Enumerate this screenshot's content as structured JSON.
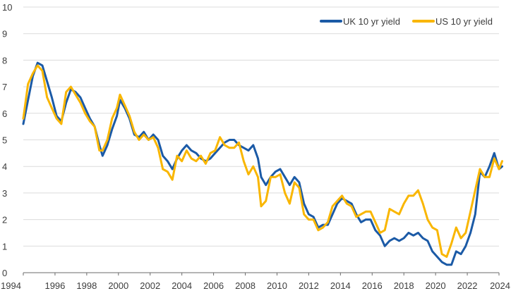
{
  "chart_data": {
    "type": "line",
    "title": "",
    "xlabel": "",
    "ylabel": "",
    "xlim": [
      1994,
      2024
    ],
    "ylim": [
      0,
      10
    ],
    "x_ticks": [
      "1994",
      "1996",
      "1998",
      "2000",
      "2002",
      "2004",
      "2006",
      "2008",
      "2010",
      "2012",
      "2014",
      "2016",
      "2018",
      "2020",
      "2022",
      "2024"
    ],
    "y_ticks": [
      "0",
      "1",
      "2",
      "3",
      "4",
      "5",
      "6",
      "7",
      "8",
      "9",
      "10"
    ],
    "grid": "horizontal",
    "legend_position": "top-right",
    "series": [
      {
        "name": "UK 10 yr yield",
        "color": "#1b5aa6",
        "x": [
          1994.0,
          1994.3,
          1994.6,
          1994.9,
          1995.2,
          1995.5,
          1995.8,
          1996.1,
          1996.4,
          1996.7,
          1997.0,
          1997.3,
          1997.6,
          1997.9,
          1998.2,
          1998.5,
          1998.8,
          1999.0,
          1999.3,
          1999.6,
          1999.9,
          2000.1,
          2000.4,
          2000.7,
          2001.0,
          2001.3,
          2001.6,
          2001.9,
          2002.2,
          2002.5,
          2002.8,
          2003.1,
          2003.4,
          2003.7,
          2004.0,
          2004.3,
          2004.6,
          2004.9,
          2005.2,
          2005.5,
          2005.8,
          2006.1,
          2006.4,
          2006.7,
          2007.0,
          2007.3,
          2007.6,
          2007.9,
          2008.2,
          2008.5,
          2008.8,
          2009.0,
          2009.3,
          2009.6,
          2009.9,
          2010.2,
          2010.5,
          2010.8,
          2011.1,
          2011.4,
          2011.7,
          2012.0,
          2012.3,
          2012.6,
          2012.9,
          2013.2,
          2013.5,
          2013.8,
          2014.1,
          2014.4,
          2014.7,
          2015.0,
          2015.3,
          2015.6,
          2015.9,
          2016.2,
          2016.5,
          2016.8,
          2017.1,
          2017.4,
          2017.7,
          2018.0,
          2018.3,
          2018.6,
          2018.9,
          2019.2,
          2019.5,
          2019.8,
          2020.1,
          2020.4,
          2020.7,
          2021.0,
          2021.3,
          2021.6,
          2021.9,
          2022.2,
          2022.5,
          2022.8,
          2023.1,
          2023.4,
          2023.7,
          2024.0,
          2024.2
        ],
        "values": [
          5.6,
          6.5,
          7.4,
          7.9,
          7.8,
          7.2,
          6.6,
          5.9,
          5.7,
          6.4,
          6.9,
          6.8,
          6.6,
          6.2,
          5.8,
          5.5,
          4.8,
          4.4,
          4.8,
          5.4,
          5.9,
          6.5,
          6.2,
          5.8,
          5.2,
          5.1,
          5.3,
          5.0,
          5.2,
          5.0,
          4.4,
          4.2,
          3.9,
          4.3,
          4.6,
          4.8,
          4.6,
          4.5,
          4.3,
          4.2,
          4.3,
          4.5,
          4.7,
          4.9,
          5.0,
          5.0,
          4.8,
          4.7,
          4.6,
          4.8,
          4.3,
          3.6,
          3.3,
          3.6,
          3.8,
          3.9,
          3.6,
          3.3,
          3.6,
          3.4,
          2.6,
          2.2,
          2.1,
          1.7,
          1.8,
          1.8,
          2.2,
          2.6,
          2.8,
          2.7,
          2.6,
          2.2,
          1.9,
          2.0,
          2.0,
          1.6,
          1.4,
          1.0,
          1.2,
          1.3,
          1.2,
          1.3,
          1.5,
          1.4,
          1.5,
          1.3,
          1.2,
          0.8,
          0.6,
          0.4,
          0.3,
          0.3,
          0.8,
          0.7,
          1.0,
          1.5,
          2.2,
          3.8,
          3.6,
          4.0,
          4.5,
          3.9,
          4.0
        ]
      },
      {
        "name": "US 10 yr yield",
        "color": "#f9b600",
        "x": [
          1994.0,
          1994.3,
          1994.6,
          1994.9,
          1995.2,
          1995.5,
          1995.8,
          1996.1,
          1996.4,
          1996.7,
          1997.0,
          1997.3,
          1997.6,
          1997.9,
          1998.2,
          1998.5,
          1998.8,
          1999.0,
          1999.3,
          1999.6,
          1999.9,
          2000.1,
          2000.4,
          2000.7,
          2001.0,
          2001.3,
          2001.6,
          2001.9,
          2002.2,
          2002.5,
          2002.8,
          2003.1,
          2003.4,
          2003.7,
          2004.0,
          2004.3,
          2004.6,
          2004.9,
          2005.2,
          2005.5,
          2005.8,
          2006.1,
          2006.4,
          2006.7,
          2007.0,
          2007.3,
          2007.6,
          2007.9,
          2008.2,
          2008.5,
          2008.8,
          2009.0,
          2009.3,
          2009.6,
          2009.9,
          2010.2,
          2010.5,
          2010.8,
          2011.1,
          2011.4,
          2011.7,
          2012.0,
          2012.3,
          2012.6,
          2012.9,
          2013.2,
          2013.5,
          2013.8,
          2014.1,
          2014.4,
          2014.7,
          2015.0,
          2015.3,
          2015.6,
          2015.9,
          2016.2,
          2016.5,
          2016.8,
          2017.1,
          2017.4,
          2017.7,
          2018.0,
          2018.3,
          2018.6,
          2018.9,
          2019.2,
          2019.5,
          2019.8,
          2020.1,
          2020.4,
          2020.7,
          2021.0,
          2021.3,
          2021.6,
          2021.9,
          2022.2,
          2022.5,
          2022.8,
          2023.1,
          2023.4,
          2023.7,
          2024.0,
          2024.2
        ],
        "values": [
          5.8,
          7.1,
          7.5,
          7.8,
          7.6,
          6.6,
          6.2,
          5.8,
          5.6,
          6.8,
          7.0,
          6.7,
          6.4,
          6.0,
          5.7,
          5.5,
          4.6,
          4.6,
          5.0,
          5.8,
          6.2,
          6.7,
          6.3,
          5.9,
          5.3,
          5.0,
          5.2,
          5.0,
          5.1,
          4.7,
          3.9,
          3.8,
          3.5,
          4.4,
          4.2,
          4.6,
          4.3,
          4.2,
          4.4,
          4.1,
          4.5,
          4.6,
          5.1,
          4.8,
          4.7,
          4.7,
          4.9,
          4.2,
          3.7,
          4.0,
          3.6,
          2.5,
          2.7,
          3.6,
          3.6,
          3.7,
          3.0,
          2.6,
          3.4,
          3.2,
          2.2,
          2.0,
          2.0,
          1.6,
          1.7,
          1.9,
          2.5,
          2.7,
          2.9,
          2.6,
          2.5,
          2.1,
          2.2,
          2.3,
          2.3,
          1.9,
          1.5,
          1.6,
          2.4,
          2.3,
          2.2,
          2.6,
          2.9,
          2.9,
          3.1,
          2.6,
          2.0,
          1.7,
          1.6,
          0.7,
          0.6,
          1.1,
          1.7,
          1.3,
          1.5,
          2.3,
          3.1,
          3.9,
          3.6,
          3.6,
          4.3,
          3.9,
          4.2
        ]
      }
    ]
  }
}
